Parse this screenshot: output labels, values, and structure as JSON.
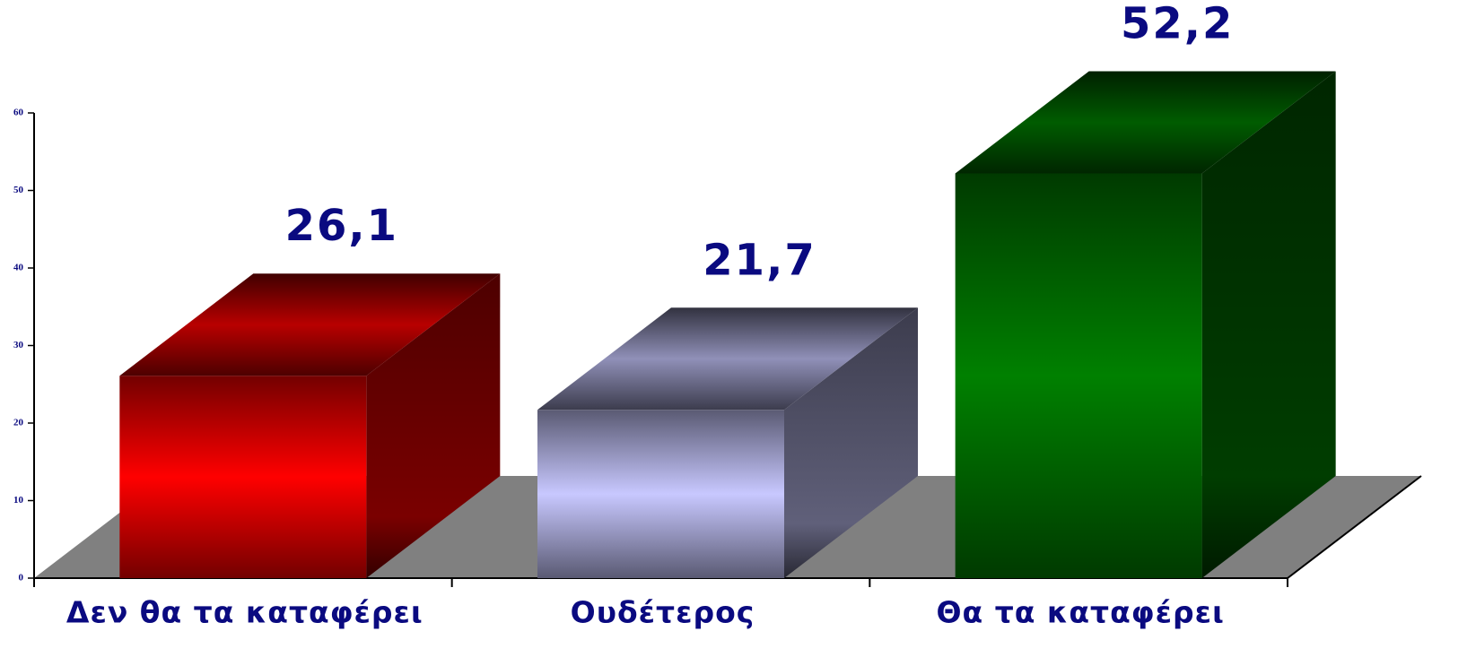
{
  "chart_data": {
    "type": "bar3d",
    "categories": [
      "Δεν θα τα καταφέρει",
      "Ουδέτερος",
      "Θα τα καταφέρει"
    ],
    "values": [
      26.1,
      21.7,
      52.2
    ],
    "value_labels": [
      "26,1",
      "21,7",
      "52,2"
    ],
    "colors": [
      "#ff0000",
      "#c8c8ff",
      "#008000"
    ],
    "ylim": [
      0,
      60
    ],
    "yticks": [
      0,
      10,
      20,
      30,
      40,
      50,
      60
    ]
  }
}
